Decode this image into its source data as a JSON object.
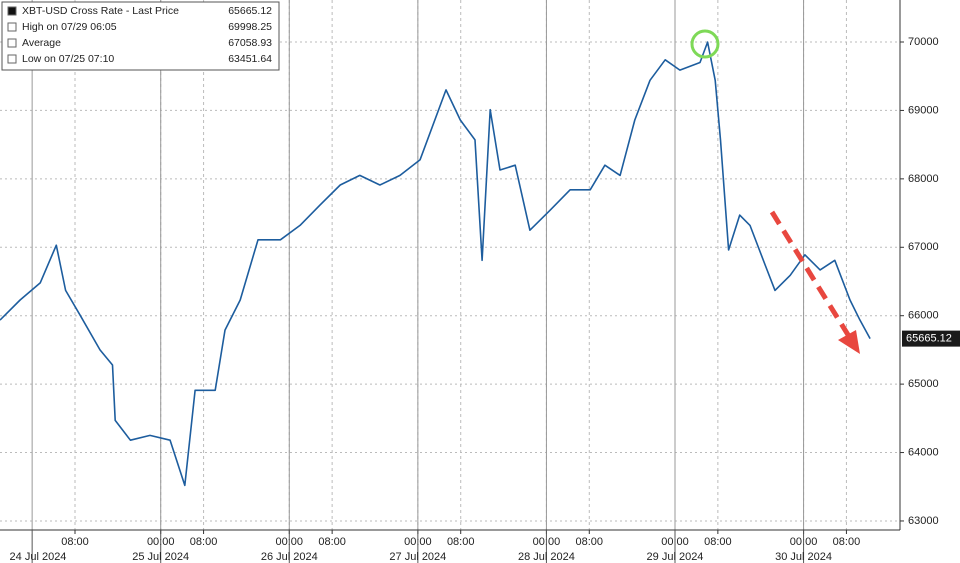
{
  "chart_data": {
    "type": "line",
    "legend": [
      {
        "label": "XBT-USD Cross Rate - Last Price",
        "value": 65665.12
      },
      {
        "label": "High on 07/29 06:05",
        "value": 69998.25
      },
      {
        "label": "Average",
        "value": 67058.93
      },
      {
        "label": "Low on 07/25 07:10",
        "value": 63451.64
      }
    ],
    "x": [
      "2024-07-23T18:00",
      "2024-07-23T21:45",
      "2024-07-24T01:30",
      "2024-07-24T04:30",
      "2024-07-24T06:15",
      "2024-07-24T09:00",
      "2024-07-24T12:40",
      "2024-07-24T15:00",
      "2024-07-24T15:30",
      "2024-07-24T18:20",
      "2024-07-24T22:00",
      "2024-07-25T01:45",
      "2024-07-25T04:30",
      "2024-07-25T06:25",
      "2024-07-25T10:10",
      "2024-07-25T12:00",
      "2024-07-25T14:50",
      "2024-07-25T18:10",
      "2024-07-25T22:20",
      "2024-07-26T02:00",
      "2024-07-26T05:45",
      "2024-07-26T09:30",
      "2024-07-26T13:10",
      "2024-07-26T16:55",
      "2024-07-26T20:40",
      "2024-07-27T00:25",
      "2024-07-27T05:15",
      "2024-07-27T07:55",
      "2024-07-27T10:40",
      "2024-07-27T12:00",
      "2024-07-27T13:30",
      "2024-07-27T15:20",
      "2024-07-27T18:10",
      "2024-07-27T20:55",
      "2024-07-28T00:40",
      "2024-07-28T04:25",
      "2024-07-28T08:10",
      "2024-07-28T10:55",
      "2024-07-28T13:45",
      "2024-07-28T16:30",
      "2024-07-28T19:20",
      "2024-07-28T22:10",
      "2024-07-29T00:55",
      "2024-07-29T04:40",
      "2024-07-29T06:05",
      "2024-07-29T07:30",
      "2024-07-29T08:30",
      "2024-07-29T10:00",
      "2024-07-29T12:05",
      "2024-07-29T14:00",
      "2024-07-29T16:50",
      "2024-07-29T18:40",
      "2024-07-29T21:30",
      "2024-07-30T00:15",
      "2024-07-30T03:05",
      "2024-07-30T05:50",
      "2024-07-30T08:40",
      "2024-07-30T10:30",
      "2024-07-30T12:25"
    ],
    "series": [
      {
        "name": "XBT-USD Cross Rate - Last Price",
        "color": "#1d5d9e",
        "values": [
          65936,
          66230,
          66480,
          67030,
          66370,
          66000,
          65500,
          65280,
          64470,
          64180,
          64250,
          64180,
          63520,
          64910,
          64910,
          65790,
          66230,
          67110,
          67110,
          67320,
          67620,
          67910,
          68050,
          67910,
          68050,
          68280,
          69300,
          68860,
          68570,
          66810,
          69010,
          68130,
          68200,
          67250,
          67540,
          67840,
          67840,
          68200,
          68050,
          68860,
          69440,
          69740,
          69590,
          69700,
          69998,
          69440,
          68570,
          66960,
          67470,
          67320,
          66740,
          66370,
          66590,
          66890,
          66670,
          66810,
          66230,
          65940,
          65665.12
        ]
      }
    ],
    "xlim": [
      "2024-07-23T18:00",
      "2024-07-30T18:00"
    ],
    "xticks": [
      {
        "value": "2024-07-24T08:00",
        "label": "08:00"
      },
      {
        "value": "2024-07-25T00:00",
        "label": "00:00"
      },
      {
        "value": "2024-07-25T08:00",
        "label": "08:00"
      },
      {
        "value": "2024-07-26T00:00",
        "label": "00:00"
      },
      {
        "value": "2024-07-26T08:00",
        "label": "08:00"
      },
      {
        "value": "2024-07-27T00:00",
        "label": "00:00"
      },
      {
        "value": "2024-07-27T08:00",
        "label": "08:00"
      },
      {
        "value": "2024-07-28T00:00",
        "label": "00:00"
      },
      {
        "value": "2024-07-28T08:00",
        "label": "08:00"
      },
      {
        "value": "2024-07-29T00:00",
        "label": "00:00"
      },
      {
        "value": "2024-07-29T08:00",
        "label": "08:00"
      },
      {
        "value": "2024-07-30T00:00",
        "label": "00:00"
      },
      {
        "value": "2024-07-30T08:00",
        "label": "08:00"
      }
    ],
    "day_labels": [
      {
        "value": "2024-07-24T00:00",
        "label": "24 Jul 2024"
      },
      {
        "value": "2024-07-25T00:00",
        "label": "25 Jul 2024"
      },
      {
        "value": "2024-07-26T00:00",
        "label": "26 Jul 2024"
      },
      {
        "value": "2024-07-27T00:00",
        "label": "27 Jul 2024"
      },
      {
        "value": "2024-07-28T00:00",
        "label": "28 Jul 2024"
      },
      {
        "value": "2024-07-29T00:00",
        "label": "29 Jul 2024"
      },
      {
        "value": "2024-07-30T00:00",
        "label": "30 Jul 2024"
      }
    ],
    "ylim": [
      62868,
      70614
    ],
    "yticks": [
      63000,
      64000,
      65000,
      66000,
      67000,
      68000,
      69000,
      70000
    ],
    "y_axis_side": "right",
    "grid": true
  }
}
